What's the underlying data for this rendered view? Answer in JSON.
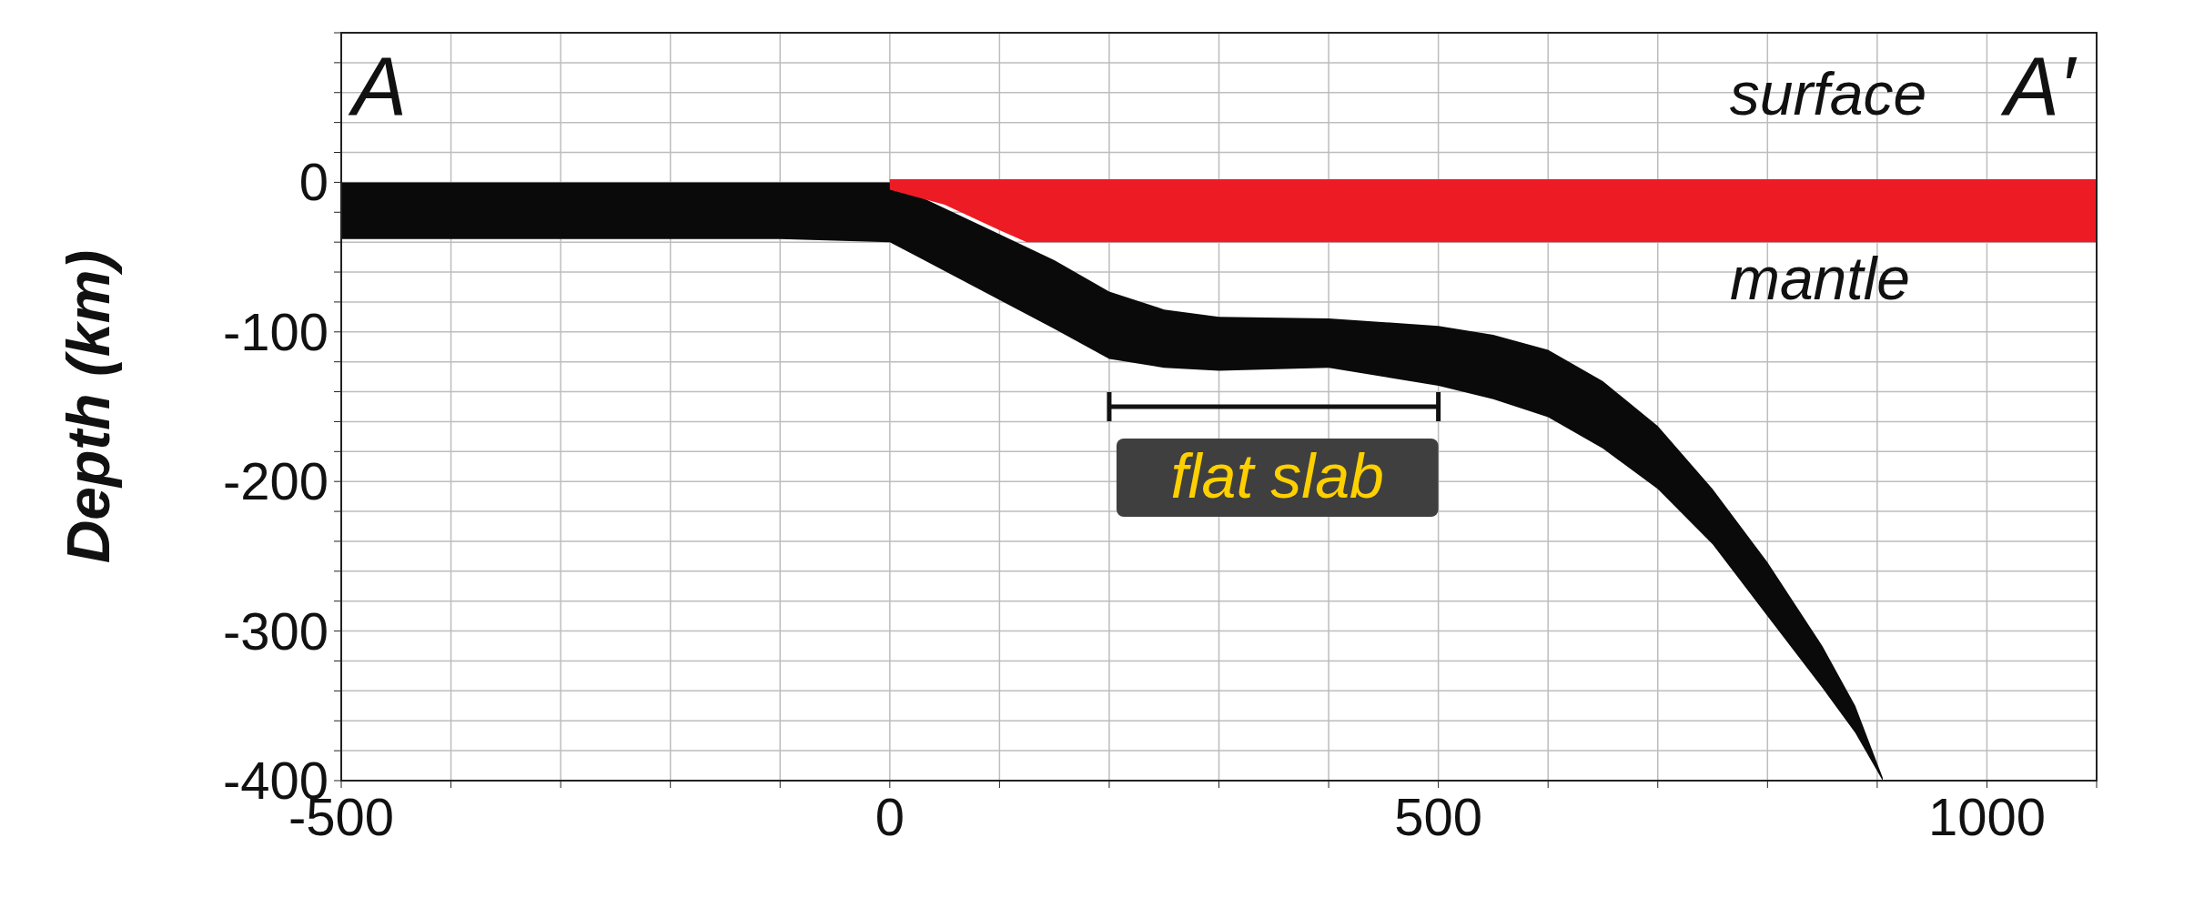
{
  "chart_data": {
    "type": "line",
    "ylabel": "Depth (km)",
    "xlim": [
      -500,
      1100
    ],
    "ylim": [
      -400,
      100
    ],
    "xticks": [
      -500,
      {
        "value": -400,
        "label": null
      },
      {
        "value": -300,
        "label": null
      },
      {
        "value": -200,
        "label": null
      },
      {
        "value": -100,
        "label": null
      },
      0,
      {
        "value": 100,
        "label": null
      },
      {
        "value": 200,
        "label": null
      },
      {
        "value": 300,
        "label": null
      },
      {
        "value": 400,
        "label": null
      },
      500,
      {
        "value": 600,
        "label": null
      },
      {
        "value": 700,
        "label": null
      },
      {
        "value": 800,
        "label": null
      },
      {
        "value": 900,
        "label": null
      },
      1000,
      {
        "value": 1100,
        "label": null
      }
    ],
    "yticks": [
      -400,
      {
        "value": -380,
        "label": null
      },
      {
        "value": -360,
        "label": null
      },
      {
        "value": -340,
        "label": null
      },
      {
        "value": -320,
        "label": null
      },
      -300,
      {
        "value": -280,
        "label": null
      },
      {
        "value": -260,
        "label": null
      },
      {
        "value": -240,
        "label": null
      },
      {
        "value": -220,
        "label": null
      },
      -200,
      {
        "value": -180,
        "label": null
      },
      {
        "value": -160,
        "label": null
      },
      {
        "value": -140,
        "label": null
      },
      {
        "value": -120,
        "label": null
      },
      -100,
      {
        "value": -80,
        "label": null
      },
      {
        "value": -60,
        "label": null
      },
      {
        "value": -40,
        "label": null
      },
      {
        "value": -20,
        "label": null
      },
      0,
      {
        "value": 20,
        "label": null
      },
      {
        "value": 40,
        "label": null
      },
      {
        "value": 60,
        "label": null
      },
      {
        "value": 80,
        "label": null
      },
      {
        "value": 100,
        "label": null
      }
    ],
    "grid": true,
    "series": [
      {
        "color": "#0a0a0a",
        "x": [
          -500,
          -400,
          -300,
          -200,
          -100,
          0,
          150,
          200,
          250,
          300,
          400,
          500,
          550,
          600,
          650,
          700,
          750,
          800,
          850,
          880,
          905
        ],
        "values": [
          null,
          null,
          null,
          null,
          null,
          null,
          null,
          null,
          null,
          null,
          null,
          null,
          null,
          null,
          null,
          null,
          null,
          null,
          null,
          null,
          null
        ],
        "upper": [
          0,
          0,
          0,
          0,
          0,
          0,
          -52,
          -73,
          -85,
          -90,
          -91,
          -96,
          -102,
          -112,
          -133,
          -163,
          -205,
          -254,
          -310,
          -350,
          -398
        ],
        "lower": [
          -38,
          -38,
          -38,
          -38,
          -38,
          -40,
          -98,
          -118,
          -124,
          -126,
          -124,
          -136,
          -145,
          -157,
          -178,
          -205,
          -242,
          -290,
          -338,
          -368,
          -400
        ]
      },
      {
        "color": "#ed1c24",
        "x": [
          0,
          50,
          100,
          125,
          200,
          400,
          600,
          800,
          1000,
          1100
        ],
        "values": [
          null,
          null,
          null,
          null,
          null,
          null,
          null,
          null,
          null,
          null
        ],
        "upper": [
          2,
          2,
          2,
          2,
          2,
          2,
          2,
          2,
          2,
          2
        ],
        "lower": [
          -5,
          -15,
          -32,
          -40,
          -40,
          -40,
          -40,
          -40,
          -40,
          -40
        ]
      }
    ],
    "annotations": [
      "A",
      "A′",
      "surface",
      "mantle",
      "flat slab"
    ]
  }
}
